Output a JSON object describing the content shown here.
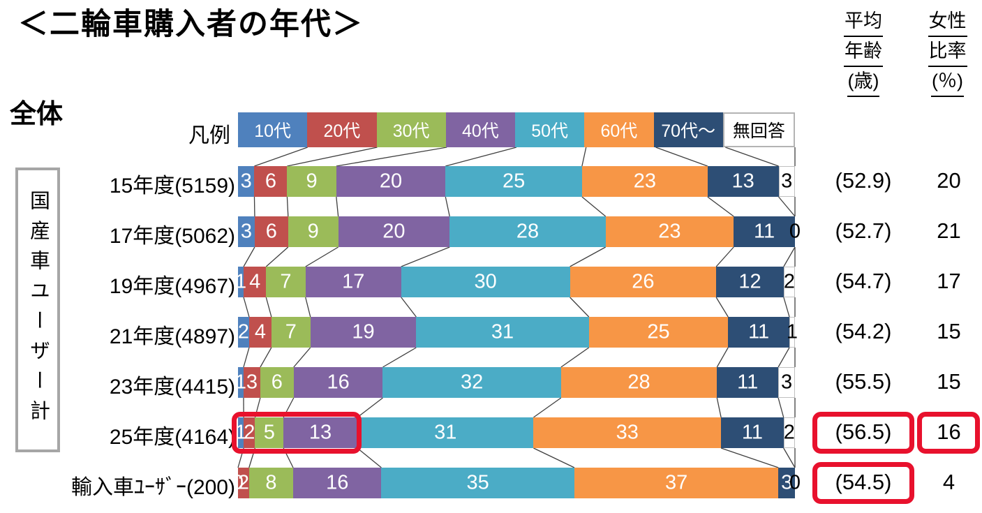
{
  "title": "＜二輪車購入者の年代＞",
  "subtitle": "全体",
  "legend_label": "凡例",
  "group_box_label": "国産車ユーザー計",
  "columns": {
    "avg_age": {
      "lines": [
        "平均",
        "年齢",
        "(歳)"
      ]
    },
    "female_ratio": {
      "lines": [
        "女性",
        "比率",
        "(％)"
      ]
    }
  },
  "highlight_color": "#e8112d",
  "chart_data": {
    "type": "bar",
    "stacked": true,
    "orientation": "horizontal",
    "value_unit": "%",
    "xlim": [
      0,
      100
    ],
    "legend": [
      "10代",
      "20代",
      "30代",
      "40代",
      "50代",
      "60代",
      "70代～",
      "無回答"
    ],
    "colors": [
      "#4F81BD",
      "#C0504D",
      "#9BBB59",
      "#8064A2",
      "#4BACC6",
      "#F79646",
      "#2D4E75",
      "#FFFFFF"
    ],
    "rows": [
      {
        "label": "15年度(5159)",
        "values": [
          3,
          6,
          9,
          20,
          25,
          23,
          13,
          3
        ],
        "avg_age": "(52.9)",
        "female_ratio": "20"
      },
      {
        "label": "17年度(5062)",
        "values": [
          3,
          6,
          9,
          20,
          28,
          23,
          11,
          0
        ],
        "avg_age": "(52.7)",
        "female_ratio": "21"
      },
      {
        "label": "19年度(4967)",
        "values": [
          1,
          4,
          7,
          17,
          30,
          26,
          12,
          2
        ],
        "avg_age": "(54.7)",
        "female_ratio": "17"
      },
      {
        "label": "21年度(4897)",
        "values": [
          2,
          4,
          7,
          19,
          31,
          25,
          11,
          1
        ],
        "avg_age": "(54.2)",
        "female_ratio": "15"
      },
      {
        "label": "23年度(4415)",
        "values": [
          1,
          3,
          6,
          16,
          32,
          28,
          11,
          3
        ],
        "avg_age": "(55.5)",
        "female_ratio": "15"
      },
      {
        "label": "25年度(4164)",
        "values": [
          1,
          2,
          5,
          13,
          31,
          33,
          11,
          2
        ],
        "avg_age": "(56.5)",
        "female_ratio": "16",
        "highlight_segments": [
          0,
          3
        ],
        "highlight_avg": true,
        "highlight_female": true
      },
      {
        "label": "輸入車ﾕｰｻﾞｰ(200)",
        "values": [
          0,
          2,
          8,
          16,
          35,
          37,
          3,
          0
        ],
        "avg_age": "(54.5)",
        "female_ratio": "4",
        "highlight_avg": true
      }
    ]
  }
}
